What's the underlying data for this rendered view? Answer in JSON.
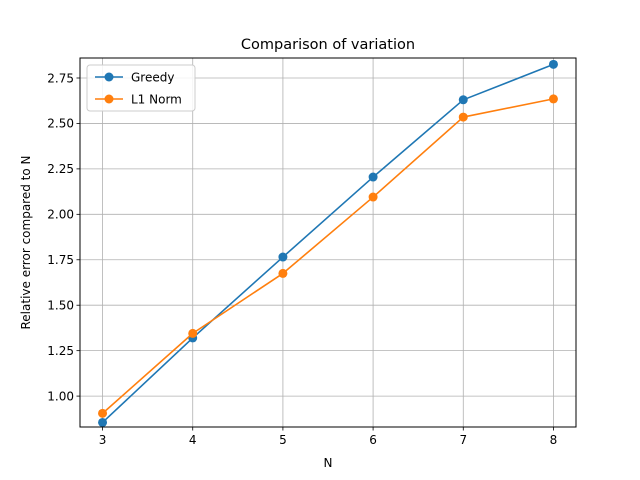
{
  "chart_data": {
    "type": "line",
    "title": "Comparison of variation",
    "xlabel": "N",
    "ylabel": "Relative error compared to N",
    "x": [
      3,
      4,
      5,
      6,
      7,
      8
    ],
    "xticks": [
      3,
      4,
      5,
      6,
      7,
      8
    ],
    "xlim": [
      2.75,
      8.25
    ],
    "ylim": [
      0.83,
      2.86
    ],
    "yticks": [
      1.0,
      1.25,
      1.5,
      1.75,
      2.0,
      2.25,
      2.5,
      2.75
    ],
    "grid": true,
    "legend_position": "top-left",
    "series": [
      {
        "name": "Greedy",
        "color": "#1f77b4",
        "marker": "circle",
        "values": [
          0.855,
          1.32,
          1.765,
          2.205,
          2.63,
          2.825
        ]
      },
      {
        "name": "L1 Norm",
        "color": "#ff7f0e",
        "marker": "circle",
        "values": [
          0.905,
          1.345,
          1.675,
          2.095,
          2.535,
          2.635
        ]
      }
    ]
  }
}
